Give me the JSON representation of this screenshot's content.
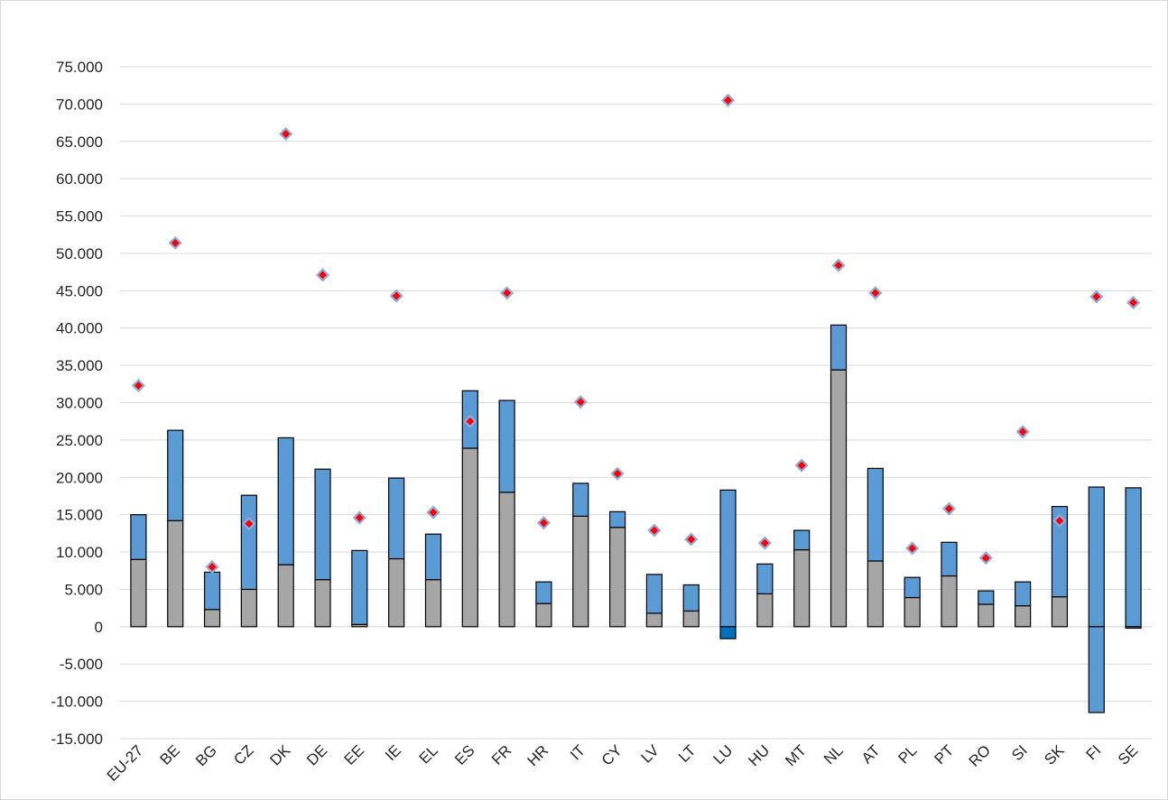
{
  "chart_data": {
    "type": "bar",
    "stacked": true,
    "categories": [
      "EU-27",
      "BE",
      "BG",
      "CZ",
      "DK",
      "DE",
      "EE",
      "IE",
      "EL",
      "ES",
      "FR",
      "HR",
      "IT",
      "CY",
      "LV",
      "LT",
      "LU",
      "HU",
      "MT",
      "NL",
      "AT",
      "PL",
      "PT",
      "RO",
      "SI",
      "SK",
      "FI",
      "SE"
    ],
    "series": [
      {
        "values": [
          9000,
          14200,
          2300,
          5000,
          8300,
          6300,
          300,
          9100,
          6300,
          23900,
          18000,
          3100,
          14800,
          13300,
          1800,
          2100,
          0,
          4400,
          10300,
          34400,
          8800,
          3900,
          6800,
          3000,
          2800,
          4000,
          0,
          0
        ]
      },
      {
        "values": [
          6000,
          12100,
          5000,
          12600,
          17000,
          14800,
          9900,
          10800,
          6100,
          7700,
          12300,
          2900,
          4400,
          2100,
          5200,
          3500,
          18300,
          4000,
          2600,
          6000,
          12400,
          2700,
          4500,
          1800,
          3200,
          12100,
          18700,
          18600
        ]
      },
      {
        "values": [
          0,
          0,
          0,
          0,
          0,
          0,
          0,
          0,
          0,
          0,
          0,
          0,
          0,
          0,
          0,
          0,
          -1600,
          0,
          0,
          0,
          0,
          0,
          0,
          0,
          0,
          0,
          -11500,
          -200
        ]
      },
      {
        "type": "scatter",
        "values": [
          32300,
          51400,
          8000,
          13800,
          66000,
          47100,
          14600,
          44300,
          15300,
          27500,
          44700,
          13900,
          30100,
          20500,
          12900,
          11700,
          70500,
          11200,
          21600,
          48400,
          44700,
          10500,
          15800,
          9200,
          26100,
          14200,
          44200,
          43400
        ]
      }
    ],
    "ylim": [
      -15000,
      75000
    ],
    "yticks": [
      75000,
      70000,
      65000,
      60000,
      55000,
      50000,
      45000,
      40000,
      35000,
      30000,
      25000,
      20000,
      15000,
      10000,
      5000,
      0,
      -5000,
      -10000,
      -15000
    ],
    "ytick_labels": [
      "75.000",
      "70.000",
      "65.000",
      "60.000",
      "55.000",
      "50.000",
      "45.000",
      "40.000",
      "35.000",
      "30.000",
      "25.000",
      "20.000",
      "15.000",
      "10.000",
      "5.000",
      "0",
      "-5.000",
      "-10.000",
      "-15.000"
    ],
    "grid": true,
    "legend": "none",
    "colors": {
      "base": "#a6a6a6",
      "top": "#5b9bd5",
      "negative": "#0070c0",
      "marker_fill": "#ff0000",
      "marker_edge": "#8faadc"
    }
  }
}
